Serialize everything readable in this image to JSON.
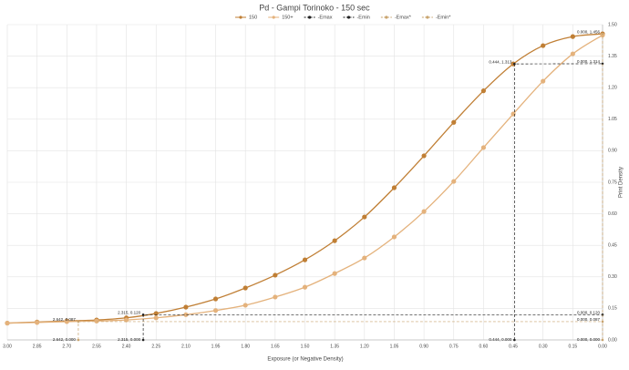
{
  "chart_data": {
    "type": "line",
    "title": "Pd - Gampi Torinoko - 150 sec",
    "x_label": "Exposure (or Negative Density)",
    "y_label": "Print Density",
    "x": [
      3.0,
      2.85,
      2.7,
      2.55,
      2.4,
      2.25,
      2.1,
      1.95,
      1.8,
      1.65,
      1.5,
      1.35,
      1.2,
      1.05,
      0.9,
      0.75,
      0.6,
      0.45,
      0.3,
      0.15,
      0.0
    ],
    "xlim": [
      3.0,
      0.0
    ],
    "xticks": [
      {
        "value": 3.0,
        "label": "3.00"
      },
      {
        "value": 2.85,
        "label": "2.85"
      },
      {
        "value": 2.7,
        "label": "2.70"
      },
      {
        "value": 2.55,
        "label": "2.55"
      },
      {
        "value": 2.4,
        "label": "2.40"
      },
      {
        "value": 2.25,
        "label": "2.25"
      },
      {
        "value": 2.1,
        "label": "2.10"
      },
      {
        "value": 1.95,
        "label": "1.95"
      },
      {
        "value": 1.8,
        "label": "1.80"
      },
      {
        "value": 1.65,
        "label": "1.65"
      },
      {
        "value": 1.5,
        "label": "1.50"
      },
      {
        "value": 1.35,
        "label": "1.35"
      },
      {
        "value": 1.2,
        "label": "1.20"
      },
      {
        "value": 1.05,
        "label": "1.05"
      },
      {
        "value": 0.9,
        "label": "0.90"
      },
      {
        "value": 0.75,
        "label": "0.75"
      },
      {
        "value": 0.6,
        "label": "0.60"
      },
      {
        "value": 0.45,
        "label": "0.45"
      },
      {
        "value": 0.3,
        "label": "0.30"
      },
      {
        "value": 0.15,
        "label": "0.15"
      },
      {
        "value": 0,
        "label": "0.00"
      }
    ],
    "ylim": [
      0,
      1.5
    ],
    "yticks": [
      {
        "value": 0,
        "label": "0.00"
      },
      {
        "value": 0.15,
        "label": "0.15"
      },
      {
        "value": 0.3,
        "label": "0.30"
      },
      {
        "value": 0.45,
        "label": "0.45"
      },
      {
        "value": 0.6,
        "label": "0.60"
      },
      {
        "value": 0.75,
        "label": "0.75"
      },
      {
        "value": 0.9,
        "label": "0.90"
      },
      {
        "value": 1.05,
        "label": "1.05"
      },
      {
        "value": 1.2,
        "label": "1.20"
      },
      {
        "value": 1.35,
        "label": "1.35"
      },
      {
        "value": 1.5,
        "label": "1.50"
      }
    ],
    "grid": true,
    "legend": "top",
    "series": [
      {
        "name": "150",
        "color": "#c07f35",
        "values": [
          0.08,
          0.085,
          0.09,
          0.095,
          0.105,
          0.126,
          0.156,
          0.195,
          0.247,
          0.308,
          0.381,
          0.472,
          0.585,
          0.724,
          0.876,
          1.035,
          1.185,
          1.313,
          1.4,
          1.443,
          1.456
        ]
      },
      {
        "name": "150+",
        "color": "#e4b27c",
        "values": [
          0.08,
          0.083,
          0.087,
          0.09,
          0.095,
          0.105,
          0.12,
          0.14,
          0.165,
          0.204,
          0.251,
          0.316,
          0.39,
          0.49,
          0.611,
          0.754,
          0.915,
          1.075,
          1.231,
          1.361,
          1.45
        ]
      },
      {
        "name": "-Emax",
        "color": "#222222",
        "dashed": true,
        "x": [
          0.444,
          0.444,
          0.0
        ],
        "values": [
          0.0,
          1.313,
          1.314
        ],
        "value_labels": [
          "0.444, 0.000",
          "0.444, 1.313",
          "0.000, 1.314"
        ]
      },
      {
        "name": "-Emin",
        "color": "#222222",
        "dashed": true,
        "x": [
          2.315,
          2.315,
          0.0
        ],
        "values": [
          0.0,
          0.12,
          0.12
        ],
        "value_labels": [
          "2.315, 0.000",
          "2.315, 0.120",
          "0.000, 0.120"
        ]
      },
      {
        "name": "-Emax*",
        "color": "#c9a46e",
        "dashed": true,
        "x": [
          0.0,
          0.0
        ],
        "values": [
          0.0,
          1.456
        ],
        "value_labels": [
          "0.000, 0.000",
          "0.000, 1.456"
        ]
      },
      {
        "name": "-Emin*",
        "color": "#c9a46e",
        "dashed": true,
        "x": [
          2.642,
          2.642,
          0.0
        ],
        "values": [
          0.0,
          0.087,
          0.087
        ],
        "value_labels": [
          "2.642, 0.000",
          "2.642, 0.087",
          "0.000, 0.087"
        ]
      }
    ]
  }
}
